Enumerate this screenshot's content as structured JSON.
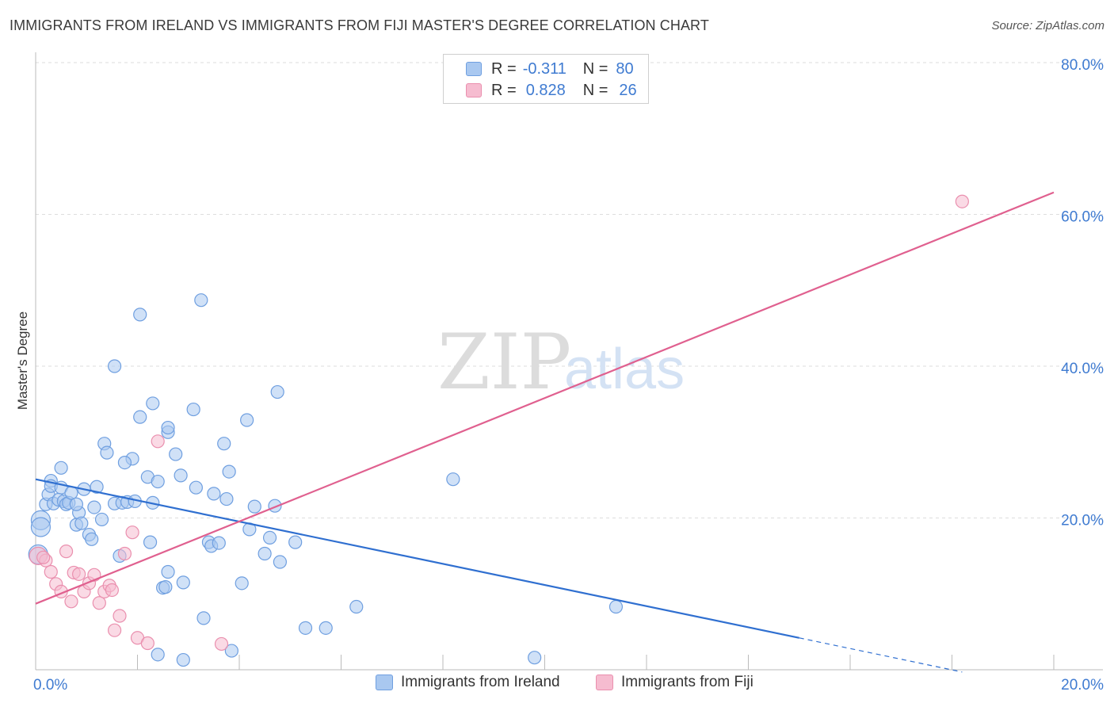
{
  "title": "IMMIGRANTS FROM IRELAND VS IMMIGRANTS FROM FIJI MASTER'S DEGREE CORRELATION CHART",
  "source": "Source: ZipAtlas.com",
  "watermark": {
    "zip": "ZIP",
    "atlas": "atlas"
  },
  "legend": {
    "ireland": {
      "r_label": "R =",
      "r_value": "-0.311",
      "n_label": "N =",
      "n_value": "80"
    },
    "fiji": {
      "r_label": "R =",
      "r_value": "0.828",
      "n_label": "N =",
      "n_value": "26"
    }
  },
  "bottom_legend": {
    "ireland": "Immigrants from Ireland",
    "fiji": "Immigrants from Fiji"
  },
  "colors": {
    "ireland_fill": "#a9c8f0",
    "ireland_stroke": "#6f9fe0",
    "ireland_line": "#2f6fd0",
    "fiji_fill": "#f6bcd0",
    "fiji_stroke": "#ea8fae",
    "fiji_line": "#e0608f",
    "tick": "#3f7bd1",
    "grid": "#dddddd"
  },
  "chart_data": {
    "type": "scatter",
    "title": "IMMIGRANTS FROM IRELAND VS IMMIGRANTS FROM FIJI MASTER'S DEGREE CORRELATION CHART",
    "xlabel": "",
    "ylabel": "Master's Degree",
    "xlim": [
      0,
      20
    ],
    "ylim": [
      0,
      80
    ],
    "x_ticks": [
      "0.0%",
      "20.0%"
    ],
    "y_ticks": [
      {
        "value": 20,
        "label": "20.0%"
      },
      {
        "value": 40,
        "label": "40.0%"
      },
      {
        "value": 60,
        "label": "60.0%"
      },
      {
        "value": 80,
        "label": "80.0%"
      }
    ],
    "series": [
      {
        "name": "Immigrants from Ireland",
        "R": -0.311,
        "N": 80,
        "trend": {
          "x": [
            0,
            15
          ],
          "y": [
            25.1,
            4.2
          ]
        },
        "trend_dashed": {
          "x": [
            15,
            18.2
          ],
          "y": [
            4.2,
            -0.3
          ]
        },
        "points": [
          [
            0.1,
            19.7
          ],
          [
            0.1,
            18.8
          ],
          [
            0.2,
            21.8
          ],
          [
            0.25,
            23.1
          ],
          [
            0.3,
            24.9
          ],
          [
            0.3,
            24.2
          ],
          [
            0.35,
            21.9
          ],
          [
            0.45,
            22.4
          ],
          [
            0.5,
            24.0
          ],
          [
            0.55,
            22.2
          ],
          [
            0.6,
            21.8
          ],
          [
            0.65,
            22.0
          ],
          [
            0.7,
            23.3
          ],
          [
            0.8,
            19.1
          ],
          [
            0.85,
            20.7
          ],
          [
            0.9,
            19.3
          ],
          [
            1.05,
            17.8
          ],
          [
            1.1,
            17.2
          ],
          [
            1.15,
            21.4
          ],
          [
            1.2,
            24.1
          ],
          [
            1.35,
            29.8
          ],
          [
            1.4,
            28.6
          ],
          [
            1.55,
            21.9
          ],
          [
            1.65,
            15.0
          ],
          [
            1.7,
            22.0
          ],
          [
            1.8,
            22.1
          ],
          [
            1.9,
            27.8
          ],
          [
            1.95,
            22.2
          ],
          [
            1.55,
            40.0
          ],
          [
            2.05,
            46.8
          ],
          [
            2.05,
            33.3
          ],
          [
            2.2,
            25.4
          ],
          [
            2.25,
            16.8
          ],
          [
            2.3,
            35.1
          ],
          [
            2.4,
            24.8
          ],
          [
            2.5,
            10.8
          ],
          [
            2.55,
            10.9
          ],
          [
            2.6,
            12.9
          ],
          [
            2.6,
            31.3
          ],
          [
            2.75,
            28.4
          ],
          [
            2.85,
            25.6
          ],
          [
            2.9,
            11.5
          ],
          [
            3.1,
            34.3
          ],
          [
            3.15,
            24.0
          ],
          [
            3.25,
            48.7
          ],
          [
            3.3,
            6.8
          ],
          [
            3.4,
            16.8
          ],
          [
            3.45,
            16.3
          ],
          [
            3.5,
            23.2
          ],
          [
            3.6,
            16.7
          ],
          [
            3.7,
            29.8
          ],
          [
            3.75,
            22.5
          ],
          [
            3.8,
            26.1
          ],
          [
            4.05,
            11.4
          ],
          [
            4.15,
            32.9
          ],
          [
            4.2,
            18.5
          ],
          [
            4.3,
            21.5
          ],
          [
            4.5,
            15.3
          ],
          [
            4.6,
            17.4
          ],
          [
            4.7,
            21.6
          ],
          [
            4.75,
            36.6
          ],
          [
            4.8,
            14.2
          ],
          [
            5.1,
            16.8
          ],
          [
            5.3,
            5.5
          ],
          [
            5.7,
            5.5
          ],
          [
            6.3,
            8.3
          ],
          [
            8.2,
            25.1
          ],
          [
            9.8,
            1.6
          ],
          [
            11.4,
            8.3
          ],
          [
            0.05,
            15.2
          ],
          [
            0.8,
            21.8
          ],
          [
            0.95,
            23.8
          ],
          [
            2.6,
            31.9
          ],
          [
            2.4,
            2.0
          ],
          [
            2.9,
            1.3
          ],
          [
            3.85,
            2.5
          ],
          [
            1.75,
            27.3
          ],
          [
            2.3,
            22.0
          ],
          [
            1.3,
            19.8
          ],
          [
            0.5,
            26.6
          ]
        ]
      },
      {
        "name": "Immigrants from Fiji",
        "R": 0.828,
        "N": 26,
        "trend": {
          "x": [
            0,
            20
          ],
          "y": [
            8.7,
            62.9
          ]
        },
        "points": [
          [
            0.05,
            15.0
          ],
          [
            0.2,
            14.4
          ],
          [
            0.3,
            12.9
          ],
          [
            0.4,
            11.3
          ],
          [
            0.5,
            10.3
          ],
          [
            0.6,
            15.6
          ],
          [
            0.7,
            9.0
          ],
          [
            0.75,
            12.8
          ],
          [
            0.85,
            12.6
          ],
          [
            0.95,
            10.3
          ],
          [
            1.05,
            11.4
          ],
          [
            1.15,
            12.5
          ],
          [
            1.25,
            8.8
          ],
          [
            1.35,
            10.3
          ],
          [
            1.45,
            11.1
          ],
          [
            1.55,
            5.2
          ],
          [
            1.65,
            7.1
          ],
          [
            1.75,
            15.3
          ],
          [
            1.9,
            18.1
          ],
          [
            2.0,
            4.2
          ],
          [
            2.2,
            3.5
          ],
          [
            2.4,
            30.1
          ],
          [
            3.65,
            3.4
          ],
          [
            18.2,
            61.7
          ],
          [
            1.5,
            10.5
          ],
          [
            0.15,
            14.8
          ]
        ]
      }
    ]
  }
}
